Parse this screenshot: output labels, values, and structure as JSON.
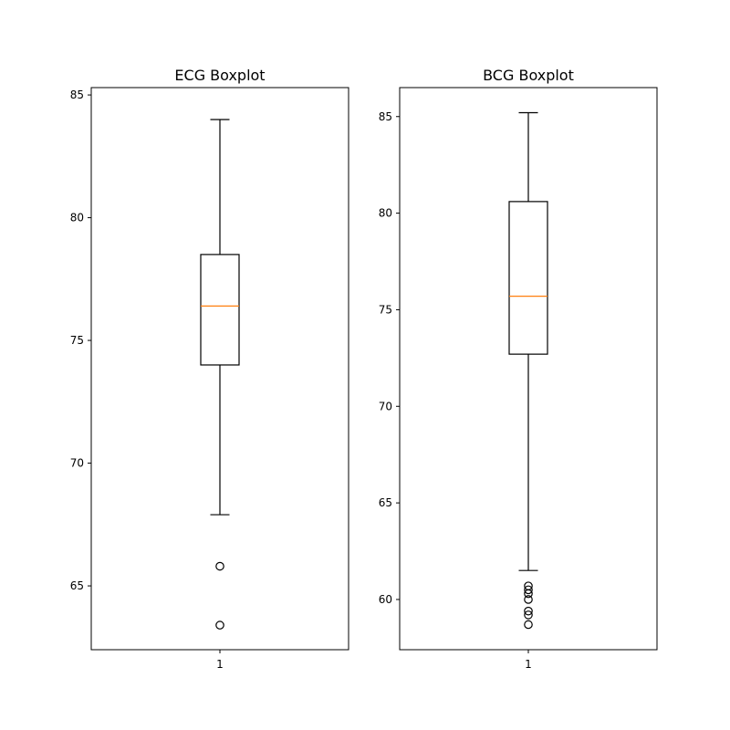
{
  "chart_data": [
    {
      "type": "boxplot",
      "title": "ECG Boxplot",
      "categories": [
        "1"
      ],
      "ylim": [
        62.4,
        85.3
      ],
      "yticks": [
        65,
        70,
        75,
        80,
        85
      ],
      "ytick_labels": [
        "65",
        "70",
        "75",
        "80",
        "85"
      ],
      "box": {
        "whisker_low": 67.9,
        "q1": 74.0,
        "median": 76.4,
        "q3": 78.5,
        "whisker_high": 84.0
      },
      "outliers": [
        65.8,
        63.4
      ],
      "grid": false,
      "colors": {
        "box": "#000000",
        "median": "#ff7f0e"
      }
    },
    {
      "type": "boxplot",
      "title": "BCG Boxplot",
      "categories": [
        "1"
      ],
      "ylim": [
        57.4,
        86.5
      ],
      "yticks": [
        60,
        65,
        70,
        75,
        80,
        85
      ],
      "ytick_labels": [
        "60",
        "65",
        "70",
        "75",
        "80",
        "85"
      ],
      "box": {
        "whisker_low": 61.5,
        "q1": 72.7,
        "median": 75.7,
        "q3": 80.6,
        "whisker_high": 85.2
      },
      "outliers": [
        60.7,
        60.5,
        60.3,
        60.0,
        59.4,
        59.2,
        58.7
      ],
      "grid": false,
      "colors": {
        "box": "#000000",
        "median": "#ff7f0e"
      }
    }
  ]
}
